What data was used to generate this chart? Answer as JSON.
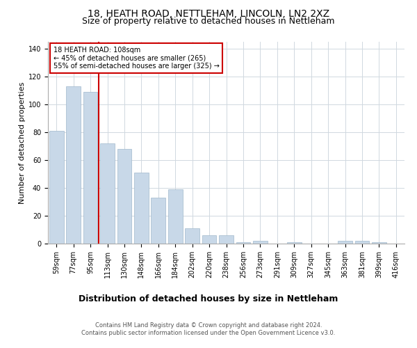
{
  "title1": "18, HEATH ROAD, NETTLEHAM, LINCOLN, LN2 2XZ",
  "title2": "Size of property relative to detached houses in Nettleham",
  "xlabel": "Distribution of detached houses by size in Nettleham",
  "ylabel": "Number of detached properties",
  "categories": [
    "59sqm",
    "77sqm",
    "95sqm",
    "113sqm",
    "130sqm",
    "148sqm",
    "166sqm",
    "184sqm",
    "202sqm",
    "220sqm",
    "238sqm",
    "256sqm",
    "273sqm",
    "291sqm",
    "309sqm",
    "327sqm",
    "345sqm",
    "363sqm",
    "381sqm",
    "399sqm",
    "416sqm"
  ],
  "values": [
    81,
    113,
    109,
    72,
    68,
    51,
    33,
    39,
    11,
    6,
    6,
    1,
    2,
    0,
    1,
    0,
    0,
    2,
    2,
    1,
    0
  ],
  "bar_color": "#c8d8e8",
  "bar_edge_color": "#a0b8cc",
  "vline_x": 2.5,
  "vline_color": "#cc0000",
  "annotation_text": "18 HEATH ROAD: 108sqm\n← 45% of detached houses are smaller (265)\n55% of semi-detached houses are larger (325) →",
  "annotation_box_color": "#ffffff",
  "annotation_box_edge": "#cc0000",
  "ylim": [
    0,
    145
  ],
  "yticks": [
    0,
    20,
    40,
    60,
    80,
    100,
    120,
    140
  ],
  "grid_color": "#d0d8e0",
  "footer1": "Contains HM Land Registry data © Crown copyright and database right 2024.",
  "footer2": "Contains public sector information licensed under the Open Government Licence v3.0.",
  "title1_fontsize": 10,
  "title2_fontsize": 9,
  "xlabel_fontsize": 9,
  "ylabel_fontsize": 8,
  "tick_fontsize": 7,
  "annot_fontsize": 7,
  "footer_fontsize": 6
}
